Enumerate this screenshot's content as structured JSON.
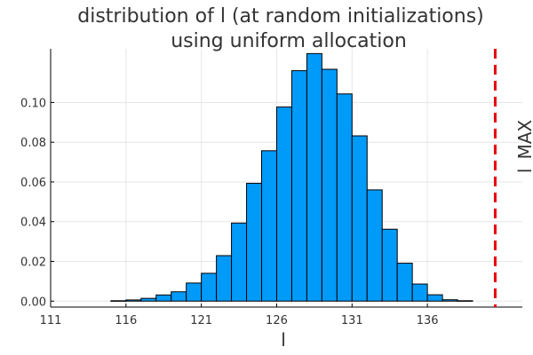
{
  "chart_data": {
    "type": "bar",
    "title_lines": [
      "distribution of l (at random initializations)",
      "using uniform allocation"
    ],
    "xlabel": "l",
    "ylabel": "",
    "xlim": [
      111,
      142.3
    ],
    "ylim": [
      -0.003,
      0.127
    ],
    "xticks": [
      111,
      116,
      121,
      126,
      131,
      136
    ],
    "yticks": [
      0.0,
      0.02,
      0.04,
      0.06,
      0.08,
      0.1
    ],
    "ytick_labels": [
      "0.00",
      "0.02",
      "0.04",
      "0.06",
      "0.08",
      "0.10"
    ],
    "grid": true,
    "bin_width": 1,
    "bins": [
      {
        "x0": 115,
        "x1": 116,
        "value": 0.0002
      },
      {
        "x0": 116,
        "x1": 117,
        "value": 0.0006
      },
      {
        "x0": 117,
        "x1": 118,
        "value": 0.0014
      },
      {
        "x0": 118,
        "x1": 119,
        "value": 0.0031
      },
      {
        "x0": 119,
        "x1": 120,
        "value": 0.0047
      },
      {
        "x0": 120,
        "x1": 121,
        "value": 0.0091
      },
      {
        "x0": 121,
        "x1": 122,
        "value": 0.014
      },
      {
        "x0": 122,
        "x1": 123,
        "value": 0.0229
      },
      {
        "x0": 123,
        "x1": 124,
        "value": 0.0393
      },
      {
        "x0": 124,
        "x1": 125,
        "value": 0.0593
      },
      {
        "x0": 125,
        "x1": 126,
        "value": 0.0757
      },
      {
        "x0": 126,
        "x1": 127,
        "value": 0.0977
      },
      {
        "x0": 127,
        "x1": 128,
        "value": 0.116
      },
      {
        "x0": 128,
        "x1": 129,
        "value": 0.1246
      },
      {
        "x0": 129,
        "x1": 130,
        "value": 0.1167
      },
      {
        "x0": 130,
        "x1": 131,
        "value": 0.1043
      },
      {
        "x0": 131,
        "x1": 132,
        "value": 0.0832
      },
      {
        "x0": 132,
        "x1": 133,
        "value": 0.056
      },
      {
        "x0": 133,
        "x1": 134,
        "value": 0.0362
      },
      {
        "x0": 134,
        "x1": 135,
        "value": 0.0191
      },
      {
        "x0": 135,
        "x1": 136,
        "value": 0.0086
      },
      {
        "x0": 136,
        "x1": 137,
        "value": 0.0032
      },
      {
        "x0": 137,
        "x1": 138,
        "value": 0.0007
      },
      {
        "x0": 138,
        "x1": 139,
        "value": 0.0002
      }
    ],
    "vline": {
      "x": 140.5,
      "label": "l_MAX",
      "color": "#e8000b",
      "style": "dashed"
    },
    "bar_color": "#009af9"
  }
}
